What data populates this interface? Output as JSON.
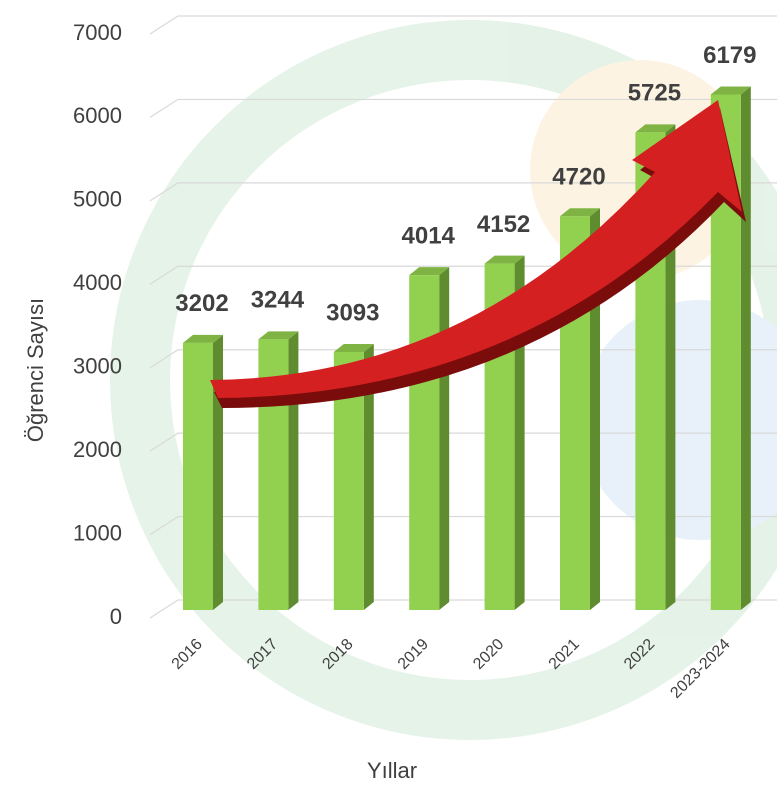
{
  "chart_data": {
    "type": "bar",
    "x_label": "Yıllar",
    "y_label": "Öğrenci Sayısı",
    "categories": [
      "2016",
      "2017",
      "2018",
      "2019",
      "2020",
      "2021",
      "2022",
      "2023-2024"
    ],
    "values": [
      3202,
      3244,
      3093,
      4014,
      4152,
      4720,
      5725,
      6179
    ],
    "color": "#92d050",
    "ylim": [
      0,
      7000
    ],
    "yticks": [
      0,
      1000,
      2000,
      3000,
      4000,
      5000,
      6000,
      7000
    ],
    "grid": true
  }
}
